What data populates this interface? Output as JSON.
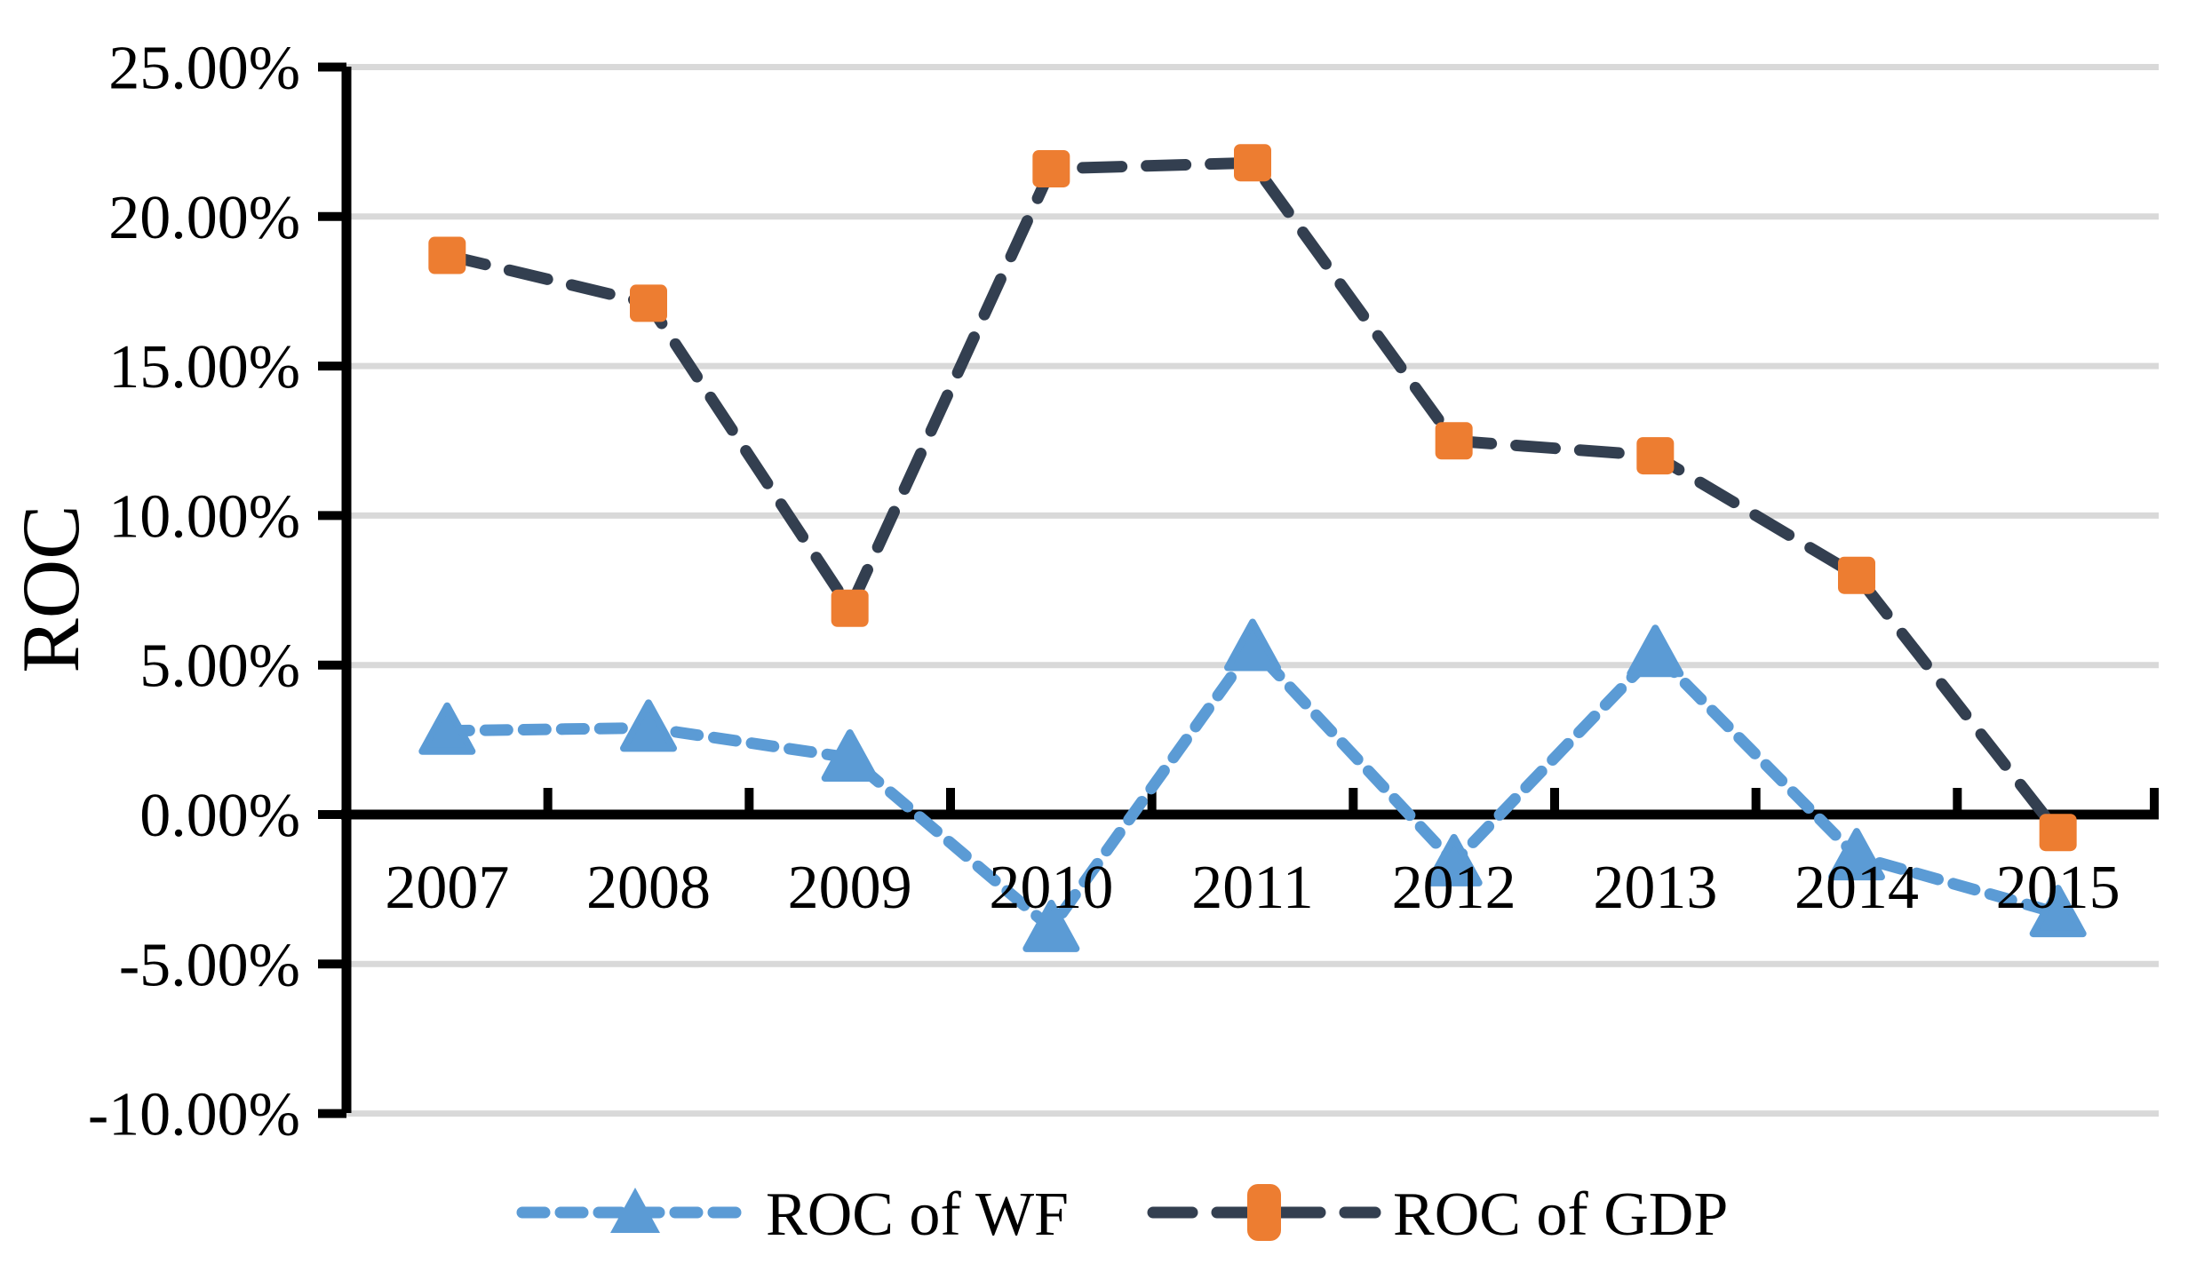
{
  "chart_data": {
    "type": "line",
    "title": "",
    "ylabel": "ROC",
    "categories": [
      "2007",
      "2008",
      "2009",
      "2010",
      "2011",
      "2012",
      "2013",
      "2014",
      "2015"
    ],
    "series": [
      {
        "name": "ROC of WF",
        "marker": "triangle",
        "color": "#5B9BD5",
        "marker_color": "#5B9BD5",
        "values": [
          2.8,
          2.9,
          1.9,
          -3.8,
          5.6,
          -1.6,
          5.4,
          -1.4,
          -3.3
        ]
      },
      {
        "name": "ROC of GDP",
        "marker": "square",
        "color": "#333F50",
        "marker_color": "#ED7D31",
        "values": [
          18.7,
          17.1,
          6.9,
          21.6,
          21.8,
          12.5,
          12.0,
          8.0,
          -0.6
        ]
      }
    ],
    "y_ticks": [
      {
        "value": 25,
        "label": "25.00%"
      },
      {
        "value": 20,
        "label": "20.00%"
      },
      {
        "value": 15,
        "label": "15.00%"
      },
      {
        "value": 10,
        "label": "10.00%"
      },
      {
        "value": 5,
        "label": "5.00%"
      },
      {
        "value": 0,
        "label": "0.00%"
      },
      {
        "value": -5,
        "label": "-5.00%"
      },
      {
        "value": -10,
        "label": "-10.00%"
      }
    ],
    "ylim": [
      -10,
      25
    ],
    "grid": true,
    "gridline_color": "#D9D9D9",
    "axis_color": "#000000",
    "legend_position": "bottom"
  }
}
